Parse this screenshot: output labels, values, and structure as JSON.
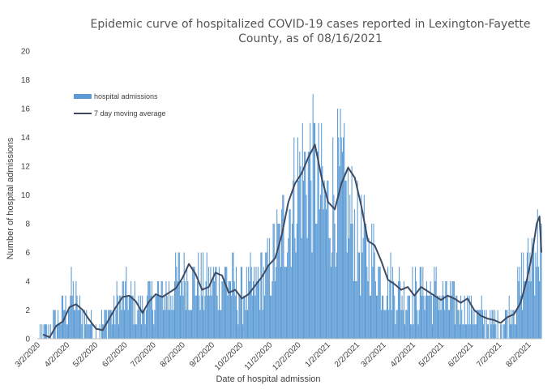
{
  "chart_data": {
    "type": "bar",
    "title_line1": "Epidemic curve of hospitalized COVID-19 cases reported in Lexington-Fayette",
    "title_line2": "County, as of 08/16/2021",
    "xlabel": "Date of hospital admission",
    "ylabel": "Number of hospital admissions",
    "ylim": [
      0,
      20
    ],
    "yticks": [
      "0",
      "2",
      "4",
      "6",
      "8",
      "10",
      "12",
      "14",
      "16",
      "18",
      "20"
    ],
    "xticks": [
      "3/2/2020",
      "4/2/2020",
      "5/2/2020",
      "6/2/2020",
      "7/2/2020",
      "8/2/2020",
      "9/2/2020",
      "10/2/2020",
      "11/2/2020",
      "12/2/2020",
      "1/2/2021",
      "2/2/2021",
      "3/2/2021",
      "4/2/2021",
      "5/2/2021",
      "6/2/2021",
      "7/2/2021",
      "8/2/2021"
    ],
    "x_range": [
      "2020-03-02",
      "2021-08-16"
    ],
    "grid": false,
    "legend_position": "top-left",
    "series": [
      {
        "name": "hospital admissions",
        "kind": "bar",
        "color": "#5b9bd5",
        "description_points": [
          [
            "2020-03-02",
            0
          ],
          [
            "2020-03-20",
            1
          ],
          [
            "2020-04-02",
            2
          ],
          [
            "2020-04-08",
            3
          ],
          [
            "2020-04-15",
            2
          ],
          [
            "2020-04-25",
            1
          ],
          [
            "2020-05-02",
            0.5
          ],
          [
            "2020-05-15",
            1.5
          ],
          [
            "2020-06-02",
            3
          ],
          [
            "2020-06-15",
            2
          ],
          [
            "2020-07-02",
            2.8
          ],
          [
            "2020-07-20",
            3
          ],
          [
            "2020-08-02",
            4.5
          ],
          [
            "2020-08-15",
            4
          ],
          [
            "2020-09-02",
            3.5
          ],
          [
            "2020-09-15",
            4.5
          ],
          [
            "2020-10-02",
            3
          ],
          [
            "2020-10-15",
            3.5
          ],
          [
            "2020-11-02",
            5
          ],
          [
            "2020-11-15",
            7
          ],
          [
            "2020-12-02",
            11
          ],
          [
            "2020-12-15",
            12
          ],
          [
            "2021-01-02",
            9
          ],
          [
            "2021-01-15",
            11
          ],
          [
            "2021-02-02",
            7
          ],
          [
            "2021-02-15",
            6
          ],
          [
            "2021-03-02",
            4
          ],
          [
            "2021-03-15",
            3.5
          ],
          [
            "2021-04-02",
            3
          ],
          [
            "2021-04-15",
            3.5
          ],
          [
            "2021-05-02",
            3
          ],
          [
            "2021-05-15",
            2.5
          ],
          [
            "2021-06-02",
            2
          ],
          [
            "2021-06-15",
            1.5
          ],
          [
            "2021-07-02",
            1.2
          ],
          [
            "2021-07-15",
            2
          ],
          [
            "2021-08-02",
            5
          ],
          [
            "2021-08-10",
            7
          ],
          [
            "2021-08-16",
            6
          ]
        ]
      },
      {
        "name": "7 day moving average",
        "kind": "line",
        "color": "#3e4a61",
        "points": [
          [
            "2020-03-08",
            0.3
          ],
          [
            "2020-03-15",
            0.1
          ],
          [
            "2020-03-22",
            0.9
          ],
          [
            "2020-03-29",
            1.2
          ],
          [
            "2020-04-05",
            2.2
          ],
          [
            "2020-04-12",
            2.4
          ],
          [
            "2020-04-19",
            2.0
          ],
          [
            "2020-04-26",
            1.3
          ],
          [
            "2020-05-03",
            0.7
          ],
          [
            "2020-05-10",
            0.6
          ],
          [
            "2020-05-17",
            1.4
          ],
          [
            "2020-05-24",
            2.2
          ],
          [
            "2020-05-31",
            2.9
          ],
          [
            "2020-06-07",
            3.0
          ],
          [
            "2020-06-14",
            2.6
          ],
          [
            "2020-06-21",
            1.8
          ],
          [
            "2020-06-28",
            2.6
          ],
          [
            "2020-07-05",
            3.1
          ],
          [
            "2020-07-12",
            2.9
          ],
          [
            "2020-07-19",
            3.2
          ],
          [
            "2020-07-26",
            3.5
          ],
          [
            "2020-08-02",
            4.2
          ],
          [
            "2020-08-09",
            5.2
          ],
          [
            "2020-08-16",
            4.5
          ],
          [
            "2020-08-23",
            3.4
          ],
          [
            "2020-08-30",
            3.6
          ],
          [
            "2020-09-06",
            4.6
          ],
          [
            "2020-09-13",
            4.4
          ],
          [
            "2020-09-20",
            3.2
          ],
          [
            "2020-09-27",
            3.4
          ],
          [
            "2020-10-04",
            2.8
          ],
          [
            "2020-10-11",
            3.1
          ],
          [
            "2020-10-18",
            3.7
          ],
          [
            "2020-10-25",
            4.3
          ],
          [
            "2020-11-01",
            5.1
          ],
          [
            "2020-11-08",
            5.6
          ],
          [
            "2020-11-15",
            7.2
          ],
          [
            "2020-11-22",
            9.5
          ],
          [
            "2020-11-29",
            10.8
          ],
          [
            "2020-12-06",
            11.5
          ],
          [
            "2020-12-13",
            12.6
          ],
          [
            "2020-12-20",
            13.5
          ],
          [
            "2020-12-27",
            11.2
          ],
          [
            "2021-01-03",
            9.5
          ],
          [
            "2021-01-10",
            9.0
          ],
          [
            "2021-01-17",
            10.8
          ],
          [
            "2021-01-24",
            11.9
          ],
          [
            "2021-01-31",
            11.2
          ],
          [
            "2021-02-07",
            9.2
          ],
          [
            "2021-02-14",
            6.8
          ],
          [
            "2021-02-21",
            6.5
          ],
          [
            "2021-02-28",
            5.4
          ],
          [
            "2021-03-07",
            4.1
          ],
          [
            "2021-03-14",
            3.8
          ],
          [
            "2021-03-21",
            3.4
          ],
          [
            "2021-03-28",
            3.6
          ],
          [
            "2021-04-04",
            3.0
          ],
          [
            "2021-04-11",
            3.6
          ],
          [
            "2021-04-18",
            3.3
          ],
          [
            "2021-04-25",
            3.0
          ],
          [
            "2021-05-02",
            2.7
          ],
          [
            "2021-05-09",
            3.0
          ],
          [
            "2021-05-16",
            2.8
          ],
          [
            "2021-05-23",
            2.5
          ],
          [
            "2021-05-30",
            2.8
          ],
          [
            "2021-06-06",
            2.0
          ],
          [
            "2021-06-13",
            1.6
          ],
          [
            "2021-06-20",
            1.4
          ],
          [
            "2021-06-27",
            1.3
          ],
          [
            "2021-07-04",
            1.1
          ],
          [
            "2021-07-11",
            1.5
          ],
          [
            "2021-07-18",
            1.7
          ],
          [
            "2021-07-25",
            2.5
          ],
          [
            "2021-08-01",
            4.2
          ],
          [
            "2021-08-06",
            5.8
          ],
          [
            "2021-08-11",
            8.0
          ],
          [
            "2021-08-14",
            8.5
          ],
          [
            "2021-08-16",
            6.0
          ]
        ]
      }
    ]
  }
}
